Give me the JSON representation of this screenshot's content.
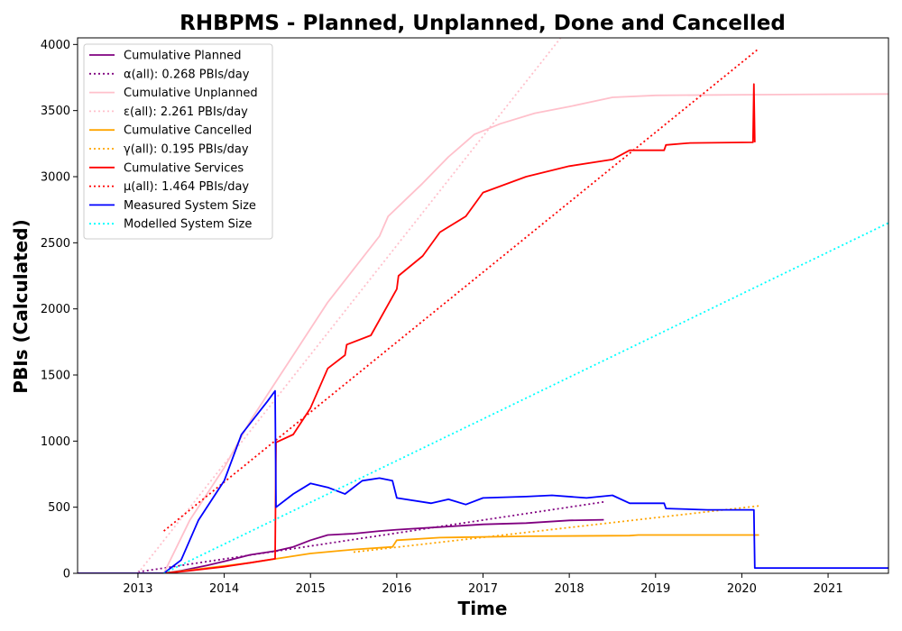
{
  "chart_data": {
    "type": "line",
    "title": "RHBPMS - Planned, Unplanned, Done  and Cancelled",
    "xlabel": "Time",
    "ylabel": "PBIs (Calculated)",
    "xlim": [
      2012.3,
      2021.7
    ],
    "ylim": [
      0,
      4050
    ],
    "x_ticks": [
      2013,
      2014,
      2015,
      2016,
      2017,
      2018,
      2019,
      2020,
      2021
    ],
    "x_tick_labels": [
      "2013",
      "2014",
      "2015",
      "2016",
      "2017",
      "2018",
      "2019",
      "2020",
      "2021"
    ],
    "y_ticks": [
      0,
      500,
      1000,
      1500,
      2000,
      2500,
      3000,
      3500,
      4000
    ],
    "y_tick_labels": [
      "0",
      "500",
      "1000",
      "1500",
      "2000",
      "2500",
      "3000",
      "3500",
      "4000"
    ],
    "grid": false,
    "legend_position": "top-left",
    "series": [
      {
        "name": "Cumulative Planned",
        "style": "solid",
        "color": "#800080",
        "x": [
          2012.3,
          2013.3,
          2013.5,
          2013.8,
          2014.0,
          2014.3,
          2014.6,
          2014.8,
          2015.0,
          2015.2,
          2015.5,
          2015.8,
          2016.0,
          2016.5,
          2017.0,
          2017.5,
          2018.0,
          2018.4
        ],
        "y": [
          0,
          0,
          20,
          60,
          90,
          140,
          170,
          200,
          250,
          290,
          300,
          320,
          330,
          350,
          370,
          380,
          400,
          405
        ]
      },
      {
        "name": "α(all): 0.268 PBIs/day",
        "style": "dotted",
        "color": "#800080",
        "x": [
          2013.0,
          2018.4
        ],
        "y": [
          10,
          540
        ]
      },
      {
        "name": "Cumulative Unplanned",
        "style": "solid",
        "color": "#ffc0cb",
        "x": [
          2012.3,
          2013.3,
          2013.6,
          2014.0,
          2014.3,
          2014.6,
          2014.9,
          2015.2,
          2015.5,
          2015.8,
          2015.9,
          2016.3,
          2016.6,
          2016.9,
          2017.2,
          2017.6,
          2018.0,
          2018.5,
          2019.0,
          2020.0,
          2021.7
        ],
        "y": [
          0,
          0,
          400,
          800,
          1150,
          1450,
          1750,
          2050,
          2300,
          2550,
          2700,
          2950,
          3150,
          3320,
          3400,
          3480,
          3530,
          3600,
          3615,
          3620,
          3625
        ]
      },
      {
        "name": "ε(all): 2.261 PBIs/day",
        "style": "dotted",
        "color": "#ffc0cb",
        "x": [
          2013.0,
          2017.9
        ],
        "y": [
          0,
          4050
        ]
      },
      {
        "name": "Cumulative Cancelled",
        "style": "solid",
        "color": "#ffa500",
        "x": [
          2012.3,
          2013.3,
          2013.8,
          2014.3,
          2014.6,
          2015.0,
          2015.5,
          2015.95,
          2016.0,
          2016.5,
          2017.5,
          2018.7,
          2018.8,
          2020.1,
          2020.2
        ],
        "y": [
          0,
          0,
          40,
          80,
          110,
          150,
          180,
          200,
          250,
          270,
          280,
          285,
          290,
          290,
          290
        ]
      },
      {
        "name": "γ(all): 0.195 PBIs/day",
        "style": "dotted",
        "color": "#ffa500",
        "x": [
          2015.5,
          2020.2
        ],
        "y": [
          160,
          510
        ]
      },
      {
        "name": "Cumulative Services",
        "style": "solid",
        "color": "#ff0000",
        "x": [
          2012.3,
          2013.3,
          2013.6,
          2014.0,
          2014.3,
          2014.59,
          2014.6,
          2014.8,
          2015.0,
          2015.2,
          2015.4,
          2015.42,
          2015.7,
          2016.0,
          2016.02,
          2016.3,
          2016.5,
          2016.8,
          2017.0,
          2017.5,
          2018.0,
          2018.5,
          2018.7,
          2019.1,
          2019.12,
          2019.4,
          2020.13,
          2020.14,
          2020.15
        ],
        "y": [
          0,
          0,
          20,
          50,
          80,
          110,
          990,
          1050,
          1250,
          1550,
          1650,
          1730,
          1800,
          2150,
          2250,
          2400,
          2580,
          2700,
          2880,
          3000,
          3080,
          3130,
          3200,
          3200,
          3240,
          3255,
          3260,
          3700,
          3260
        ]
      },
      {
        "name": "μ(all): 1.464 PBIs/day",
        "style": "dotted",
        "color": "#ff0000",
        "x": [
          2013.3,
          2020.2
        ],
        "y": [
          320,
          3970
        ]
      },
      {
        "name": "Measured System Size",
        "style": "solid",
        "color": "#0000ff",
        "x": [
          2012.3,
          2013.3,
          2013.5,
          2013.7,
          2014.0,
          2014.2,
          2014.5,
          2014.59,
          2014.6,
          2014.8,
          2015.0,
          2015.2,
          2015.4,
          2015.6,
          2015.8,
          2015.95,
          2016.0,
          2016.4,
          2016.6,
          2016.8,
          2017.0,
          2017.5,
          2017.8,
          2018.2,
          2018.5,
          2018.7,
          2019.1,
          2019.12,
          2019.6,
          2020.14,
          2020.15,
          2021.7
        ],
        "y": [
          0,
          0,
          100,
          400,
          700,
          1050,
          1300,
          1380,
          500,
          600,
          680,
          650,
          600,
          700,
          720,
          700,
          570,
          530,
          560,
          520,
          570,
          580,
          590,
          570,
          590,
          530,
          530,
          490,
          480,
          480,
          40,
          40
        ]
      },
      {
        "name": "Modelled System Size",
        "style": "dotted",
        "color": "#00ffff",
        "x": [
          2013.3,
          2021.7
        ],
        "y": [
          0,
          2650
        ]
      }
    ]
  }
}
